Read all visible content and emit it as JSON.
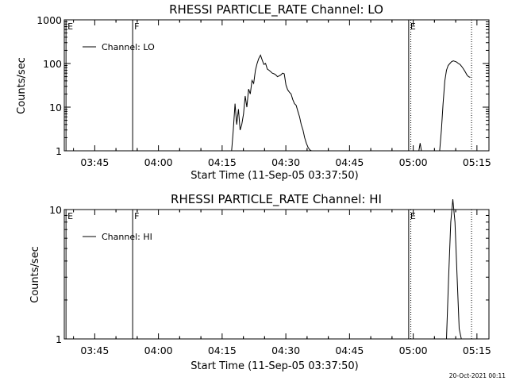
{
  "chart_data": [
    {
      "type": "line",
      "title": "RHESSI PARTICLE_RATE Channel: LO",
      "xlabel": "Start Time (11-Sep-05 03:37:50)",
      "ylabel": "Counts/sec",
      "yscale": "log",
      "ylim": [
        1,
        1000
      ],
      "yticks": [
        1,
        10,
        100,
        1000
      ],
      "ytick_labels": [
        "1",
        "10",
        "100",
        "1000"
      ],
      "xlim_minutes": [
        0,
        100
      ],
      "xticks_minutes": [
        7.17,
        22.17,
        37.17,
        52.17,
        67.17,
        82.17,
        97.17
      ],
      "xtick_labels": [
        "03:45",
        "04:00",
        "04:15",
        "04:30",
        "04:45",
        "05:00",
        "05:15"
      ],
      "legend": {
        "position": "top-left",
        "entries": [
          "Channel: LO"
        ]
      },
      "markers": [
        {
          "label": "E",
          "x_minutes": 0.4,
          "style": "solid"
        },
        {
          "label": "F",
          "x_minutes": 16.1,
          "style": "solid"
        },
        {
          "label": "E",
          "x_minutes": 81.1,
          "style": "solid"
        },
        {
          "label": "",
          "x_minutes": 81.6,
          "style": "dotted"
        },
        {
          "label": "",
          "x_minutes": 95.9,
          "style": "dotted"
        }
      ],
      "series": [
        {
          "name": "Channel: LO",
          "segments": [
            {
              "x_minutes": [
                39.4,
                39.8,
                40.2,
                40.6,
                41.0,
                41.4,
                41.8,
                42.2,
                42.6,
                43.0,
                43.4,
                43.8,
                44.2,
                44.6,
                45.0,
                45.4,
                45.8,
                46.2,
                46.6,
                47.0,
                47.4,
                47.8,
                48.2,
                48.6,
                49.0,
                49.4,
                49.8,
                50.2,
                50.6,
                51.0,
                51.4,
                51.8,
                52.2,
                52.6,
                53.0,
                53.4,
                53.8,
                54.2,
                54.6,
                55.0,
                55.4,
                55.8,
                56.2,
                56.6,
                57.0,
                57.4,
                57.8,
                58.2
              ],
              "y": [
                1,
                3,
                12,
                4,
                9,
                3,
                4,
                7,
                18,
                10,
                26,
                20,
                41,
                35,
                70,
                100,
                130,
                155,
                120,
                95,
                100,
                75,
                70,
                65,
                60,
                58,
                55,
                50,
                52,
                55,
                60,
                58,
                32,
                25,
                22,
                20,
                15,
                12,
                11,
                8,
                6,
                4,
                3,
                2,
                1.5,
                1.2,
                1.05,
                1
              ]
            },
            {
              "x_minutes": [
                83.5,
                83.8,
                84.1
              ],
              "y": [
                1,
                1.5,
                1
              ]
            },
            {
              "x_minutes": [
                88.4,
                88.8,
                89.2,
                89.6,
                90.0,
                90.4,
                90.8,
                91.2,
                91.6,
                92.0,
                92.4,
                92.8,
                93.2,
                93.6,
                94.0,
                94.4,
                94.8,
                95.2,
                95.6
              ],
              "y": [
                1,
                3,
                12,
                40,
                70,
                90,
                100,
                110,
                115,
                112,
                108,
                100,
                95,
                85,
                75,
                65,
                55,
                50,
                48
              ]
            }
          ]
        }
      ]
    },
    {
      "type": "line",
      "title": "RHESSI PARTICLE_RATE Channel: HI",
      "xlabel": "Start Time (11-Sep-05 03:37:50)",
      "ylabel": "Counts/sec",
      "yscale": "log",
      "ylim": [
        1,
        10
      ],
      "yticks": [
        1,
        10
      ],
      "ytick_labels": [
        "1",
        "10"
      ],
      "xlim_minutes": [
        0,
        100
      ],
      "xticks_minutes": [
        7.17,
        22.17,
        37.17,
        52.17,
        67.17,
        82.17,
        97.17
      ],
      "xtick_labels": [
        "03:45",
        "04:00",
        "04:15",
        "04:30",
        "04:45",
        "05:00",
        "05:15"
      ],
      "legend": {
        "position": "top-left",
        "entries": [
          "Channel: HI"
        ]
      },
      "markers": [
        {
          "label": "E",
          "x_minutes": 0.4,
          "style": "solid"
        },
        {
          "label": "F",
          "x_minutes": 16.1,
          "style": "solid"
        },
        {
          "label": "E",
          "x_minutes": 81.1,
          "style": "solid"
        },
        {
          "label": "",
          "x_minutes": 81.6,
          "style": "dotted"
        },
        {
          "label": "",
          "x_minutes": 95.9,
          "style": "dotted"
        }
      ],
      "series": [
        {
          "name": "Channel: HI",
          "segments": [
            {
              "x_minutes": [
                90.0,
                90.5,
                91.0,
                91.5,
                92.0,
                92.5,
                93.0,
                93.5
              ],
              "y": [
                1,
                3,
                8,
                12,
                8,
                3,
                1.2,
                1
              ]
            }
          ]
        }
      ]
    }
  ],
  "footer": {
    "timestamp": "20-Oct-2021 00:11"
  }
}
